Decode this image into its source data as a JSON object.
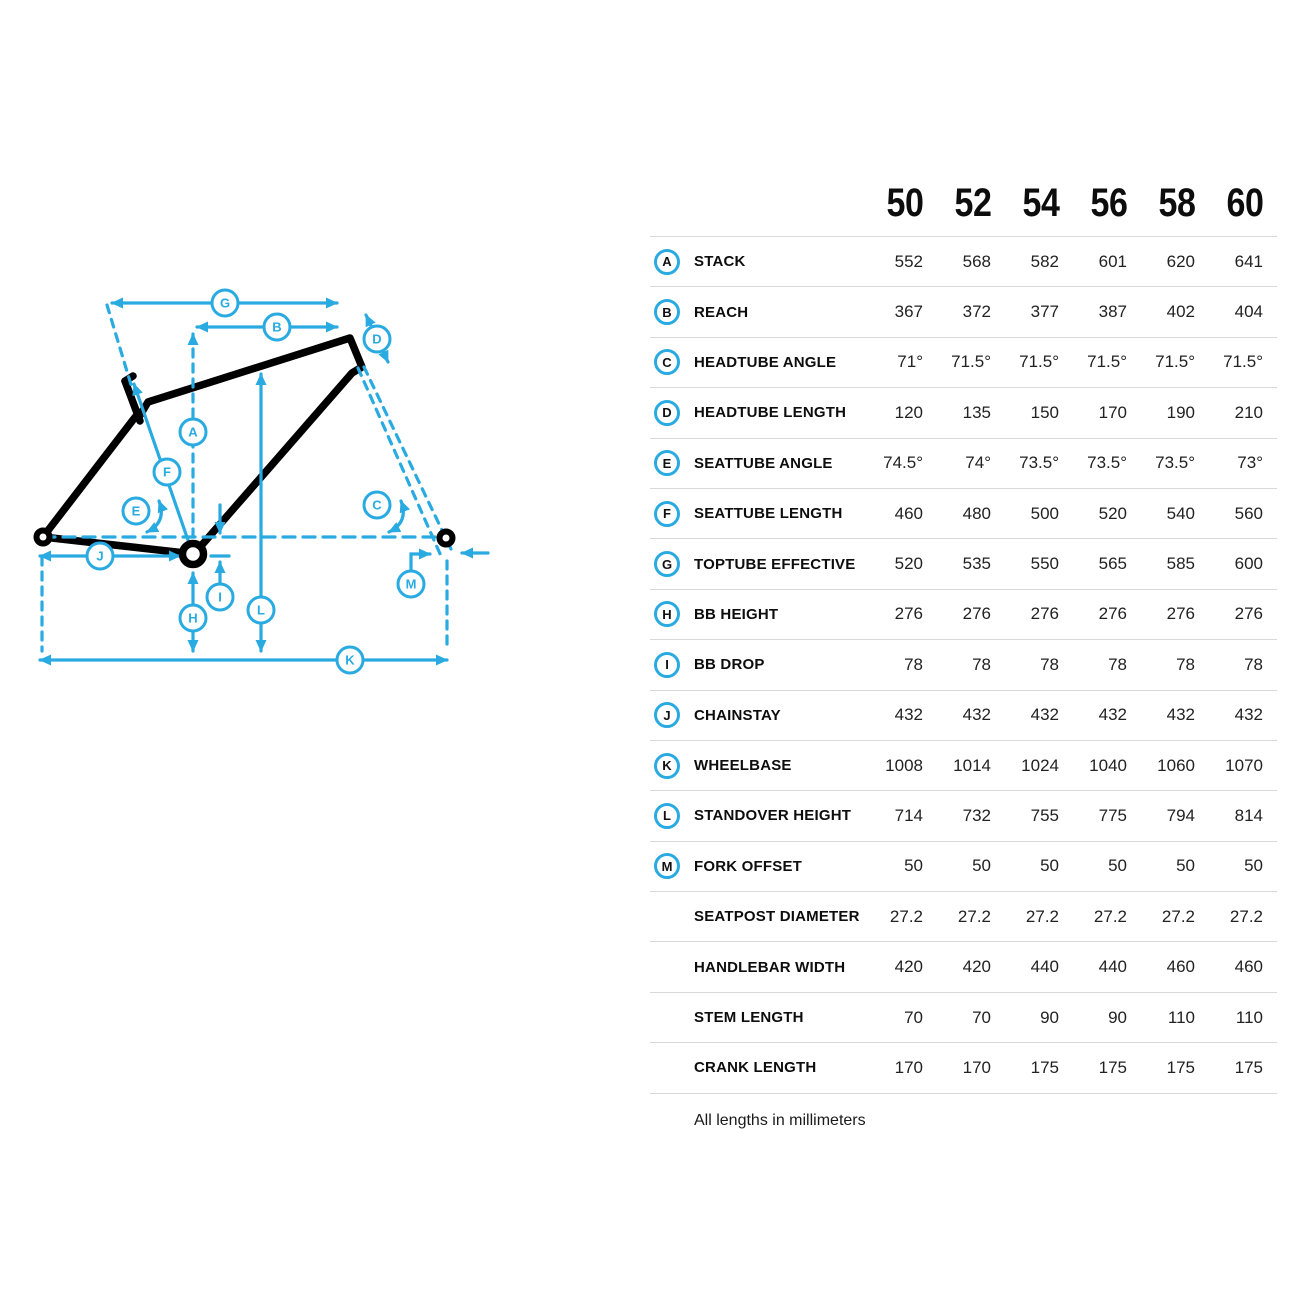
{
  "accent_color": "#29abe2",
  "table": {
    "sizes": [
      "50",
      "52",
      "54",
      "56",
      "58",
      "60"
    ],
    "rows": [
      {
        "letter": "A",
        "label": "STACK",
        "values": [
          "552",
          "568",
          "582",
          "601",
          "620",
          "641"
        ]
      },
      {
        "letter": "B",
        "label": "REACH",
        "values": [
          "367",
          "372",
          "377",
          "387",
          "402",
          "404"
        ]
      },
      {
        "letter": "C",
        "label": "HEADTUBE ANGLE",
        "values": [
          "71°",
          "71.5°",
          "71.5°",
          "71.5°",
          "71.5°",
          "71.5°"
        ]
      },
      {
        "letter": "D",
        "label": "HEADTUBE LENGTH",
        "values": [
          "120",
          "135",
          "150",
          "170",
          "190",
          "210"
        ]
      },
      {
        "letter": "E",
        "label": "SEATTUBE ANGLE",
        "values": [
          "74.5°",
          "74°",
          "73.5°",
          "73.5°",
          "73.5°",
          "73°"
        ]
      },
      {
        "letter": "F",
        "label": "SEATTUBE LENGTH",
        "values": [
          "460",
          "480",
          "500",
          "520",
          "540",
          "560"
        ]
      },
      {
        "letter": "G",
        "label": "TOPTUBE EFFECTIVE",
        "values": [
          "520",
          "535",
          "550",
          "565",
          "585",
          "600"
        ]
      },
      {
        "letter": "H",
        "label": "BB HEIGHT",
        "values": [
          "276",
          "276",
          "276",
          "276",
          "276",
          "276"
        ]
      },
      {
        "letter": "I",
        "label": "BB DROP",
        "values": [
          "78",
          "78",
          "78",
          "78",
          "78",
          "78"
        ]
      },
      {
        "letter": "J",
        "label": "CHAINSTAY",
        "values": [
          "432",
          "432",
          "432",
          "432",
          "432",
          "432"
        ]
      },
      {
        "letter": "K",
        "label": "WHEELBASE",
        "values": [
          "1008",
          "1014",
          "1024",
          "1040",
          "1060",
          "1070"
        ]
      },
      {
        "letter": "L",
        "label": "STANDOVER HEIGHT",
        "values": [
          "714",
          "732",
          "755",
          "775",
          "794",
          "814"
        ]
      },
      {
        "letter": "M",
        "label": "FORK OFFSET",
        "values": [
          "50",
          "50",
          "50",
          "50",
          "50",
          "50"
        ]
      },
      {
        "letter": "",
        "label": "SEATPOST DIAMETER",
        "values": [
          "27.2",
          "27.2",
          "27.2",
          "27.2",
          "27.2",
          "27.2"
        ]
      },
      {
        "letter": "",
        "label": "HANDLEBAR WIDTH",
        "values": [
          "420",
          "420",
          "440",
          "440",
          "460",
          "460"
        ]
      },
      {
        "letter": "",
        "label": "STEM LENGTH",
        "values": [
          "70",
          "70",
          "90",
          "90",
          "110",
          "110"
        ]
      },
      {
        "letter": "",
        "label": "CRANK LENGTH",
        "values": [
          "170",
          "170",
          "175",
          "175",
          "175",
          "175"
        ]
      }
    ],
    "footnote": "All lengths in millimeters"
  },
  "diagram": {
    "marker_letters": [
      "A",
      "B",
      "C",
      "D",
      "E",
      "F",
      "G",
      "H",
      "I",
      "J",
      "K",
      "L",
      "M"
    ]
  }
}
